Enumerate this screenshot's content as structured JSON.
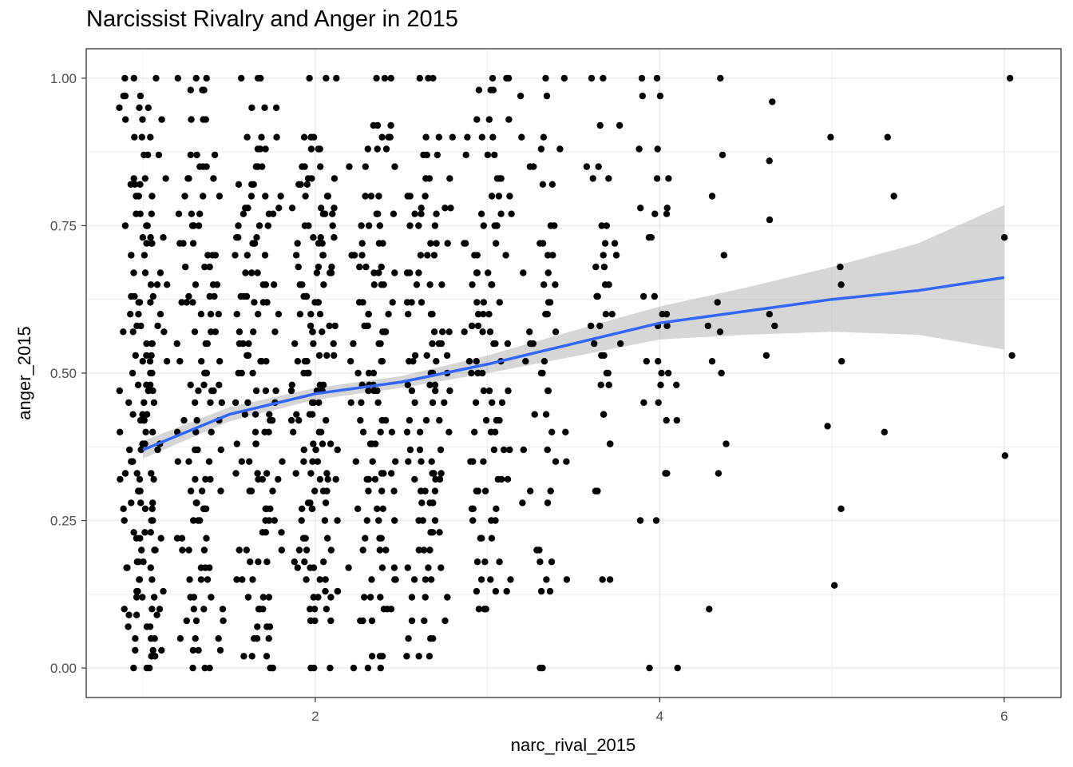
{
  "chart_data": {
    "type": "scatter",
    "title": "Narcissist Rivalry and Anger in 2015",
    "xlabel": "narc_rival_2015",
    "ylabel": "anger_2015",
    "xlim": [
      0.67,
      6.33
    ],
    "ylim": [
      -0.05,
      1.05
    ],
    "x_ticks": [
      2,
      4,
      6
    ],
    "x_tick_labels": [
      "2",
      "4",
      "6"
    ],
    "y_ticks": [
      0,
      0.25,
      0.5,
      0.75,
      1
    ],
    "y_tick_labels": [
      "0.00",
      "0.25",
      "0.50",
      "0.75",
      "1.00"
    ],
    "grid": true,
    "theme": "bw",
    "point_color": "#000000",
    "smooth_color": "#3366FF",
    "band_color": "#999999",
    "columns": [
      {
        "x": 1.0,
        "y": [
          0.0,
          0.02,
          0.03,
          0.05,
          0.07,
          0.09,
          0.1,
          0.12,
          0.13,
          0.15,
          0.17,
          0.18,
          0.2,
          0.22,
          0.23,
          0.25,
          0.27,
          0.28,
          0.3,
          0.32,
          0.33,
          0.35,
          0.37,
          0.38,
          0.4,
          0.42,
          0.43,
          0.45,
          0.47,
          0.48,
          0.5,
          0.52,
          0.53,
          0.55,
          0.57,
          0.58,
          0.6,
          0.62,
          0.63,
          0.65,
          0.67,
          0.7,
          0.72,
          0.73,
          0.75,
          0.77,
          0.8,
          0.82,
          0.83,
          0.87,
          0.9,
          0.93,
          0.95,
          0.97,
          1.0
        ]
      },
      {
        "x": 1.33,
        "y": [
          0.0,
          0.03,
          0.05,
          0.08,
          0.1,
          0.12,
          0.15,
          0.17,
          0.2,
          0.22,
          0.25,
          0.27,
          0.28,
          0.3,
          0.32,
          0.35,
          0.37,
          0.4,
          0.42,
          0.45,
          0.47,
          0.48,
          0.5,
          0.52,
          0.55,
          0.57,
          0.6,
          0.62,
          0.63,
          0.65,
          0.68,
          0.7,
          0.72,
          0.75,
          0.77,
          0.8,
          0.83,
          0.85,
          0.87,
          0.93,
          0.98,
          1.0
        ]
      },
      {
        "x": 1.67,
        "y": [
          0.0,
          0.02,
          0.05,
          0.07,
          0.1,
          0.12,
          0.15,
          0.18,
          0.2,
          0.23,
          0.25,
          0.27,
          0.3,
          0.32,
          0.33,
          0.35,
          0.38,
          0.4,
          0.42,
          0.43,
          0.45,
          0.47,
          0.5,
          0.52,
          0.53,
          0.55,
          0.57,
          0.6,
          0.62,
          0.63,
          0.65,
          0.67,
          0.7,
          0.72,
          0.73,
          0.75,
          0.77,
          0.78,
          0.8,
          0.82,
          0.85,
          0.88,
          0.9,
          0.95,
          1.0
        ]
      },
      {
        "x": 2.0,
        "y": [
          0.0,
          0.08,
          0.1,
          0.12,
          0.13,
          0.15,
          0.17,
          0.18,
          0.2,
          0.22,
          0.25,
          0.27,
          0.28,
          0.3,
          0.32,
          0.33,
          0.35,
          0.37,
          0.38,
          0.4,
          0.42,
          0.43,
          0.45,
          0.47,
          0.48,
          0.5,
          0.52,
          0.53,
          0.55,
          0.57,
          0.58,
          0.6,
          0.62,
          0.63,
          0.65,
          0.67,
          0.68,
          0.7,
          0.72,
          0.73,
          0.75,
          0.77,
          0.78,
          0.8,
          0.82,
          0.83,
          0.85,
          0.88,
          0.9,
          1.0
        ]
      },
      {
        "x": 2.33,
        "y": [
          0.0,
          0.02,
          0.08,
          0.1,
          0.12,
          0.15,
          0.17,
          0.2,
          0.22,
          0.25,
          0.27,
          0.3,
          0.32,
          0.33,
          0.35,
          0.38,
          0.4,
          0.42,
          0.45,
          0.47,
          0.48,
          0.5,
          0.52,
          0.55,
          0.57,
          0.58,
          0.6,
          0.62,
          0.65,
          0.67,
          0.68,
          0.7,
          0.72,
          0.75,
          0.77,
          0.8,
          0.85,
          0.88,
          0.9,
          0.92,
          1.0
        ]
      },
      {
        "x": 2.67,
        "y": [
          0.02,
          0.05,
          0.08,
          0.12,
          0.15,
          0.17,
          0.2,
          0.23,
          0.25,
          0.28,
          0.3,
          0.32,
          0.33,
          0.35,
          0.37,
          0.4,
          0.42,
          0.45,
          0.47,
          0.48,
          0.5,
          0.52,
          0.53,
          0.55,
          0.57,
          0.6,
          0.62,
          0.65,
          0.67,
          0.7,
          0.72,
          0.75,
          0.77,
          0.78,
          0.8,
          0.83,
          0.87,
          0.9,
          1.0
        ]
      },
      {
        "x": 3.0,
        "y": [
          0.1,
          0.13,
          0.15,
          0.18,
          0.22,
          0.25,
          0.27,
          0.3,
          0.32,
          0.35,
          0.37,
          0.4,
          0.42,
          0.45,
          0.47,
          0.5,
          0.52,
          0.55,
          0.57,
          0.58,
          0.6,
          0.62,
          0.65,
          0.67,
          0.7,
          0.72,
          0.75,
          0.77,
          0.8,
          0.83,
          0.87,
          0.9,
          0.93,
          0.98,
          1.0
        ]
      },
      {
        "x": 3.33,
        "y": [
          0.0,
          0.13,
          0.15,
          0.18,
          0.2,
          0.28,
          0.3,
          0.35,
          0.37,
          0.4,
          0.43,
          0.47,
          0.5,
          0.52,
          0.55,
          0.57,
          0.6,
          0.62,
          0.65,
          0.67,
          0.7,
          0.72,
          0.75,
          0.82,
          0.85,
          0.88,
          0.9,
          0.97,
          1.0
        ]
      },
      {
        "x": 3.67,
        "y": [
          0.15,
          0.3,
          0.38,
          0.43,
          0.48,
          0.5,
          0.53,
          0.55,
          0.58,
          0.6,
          0.63,
          0.65,
          0.68,
          0.7,
          0.72,
          0.75,
          0.83,
          0.85,
          0.92,
          1.0
        ]
      },
      {
        "x": 4.0,
        "y": [
          0.0,
          0.25,
          0.33,
          0.42,
          0.45,
          0.48,
          0.5,
          0.52,
          0.58,
          0.6,
          0.63,
          0.73,
          0.77,
          0.78,
          0.83,
          0.88,
          0.97,
          1.0
        ]
      },
      {
        "x": 4.33,
        "y": [
          0.1,
          0.33,
          0.38,
          0.5,
          0.52,
          0.57,
          0.58,
          0.62,
          0.7,
          0.8,
          0.87,
          1.0
        ]
      },
      {
        "x": 4.67,
        "y": [
          0.53,
          0.58,
          0.6,
          0.76,
          0.86,
          0.96
        ]
      },
      {
        "x": 5.0,
        "y": [
          0.14,
          0.27,
          0.41,
          0.52,
          0.65,
          0.68,
          0.9
        ]
      },
      {
        "x": 5.33,
        "y": [
          0.4,
          0.8,
          0.9
        ]
      },
      {
        "x": 6.0,
        "y": [
          0.36,
          0.53,
          0.73,
          1.0
        ]
      }
    ],
    "smooth": {
      "x": [
        1.0,
        1.5,
        2.0,
        2.5,
        3.0,
        3.5,
        4.0,
        4.5,
        5.0,
        5.5,
        6.0
      ],
      "y": [
        0.37,
        0.43,
        0.465,
        0.485,
        0.515,
        0.55,
        0.585,
        0.605,
        0.625,
        0.64,
        0.662
      ],
      "lower": [
        0.355,
        0.418,
        0.455,
        0.475,
        0.5,
        0.528,
        0.557,
        0.565,
        0.57,
        0.565,
        0.54
      ],
      "upper": [
        0.385,
        0.442,
        0.475,
        0.495,
        0.53,
        0.572,
        0.613,
        0.645,
        0.68,
        0.72,
        0.785
      ]
    }
  }
}
